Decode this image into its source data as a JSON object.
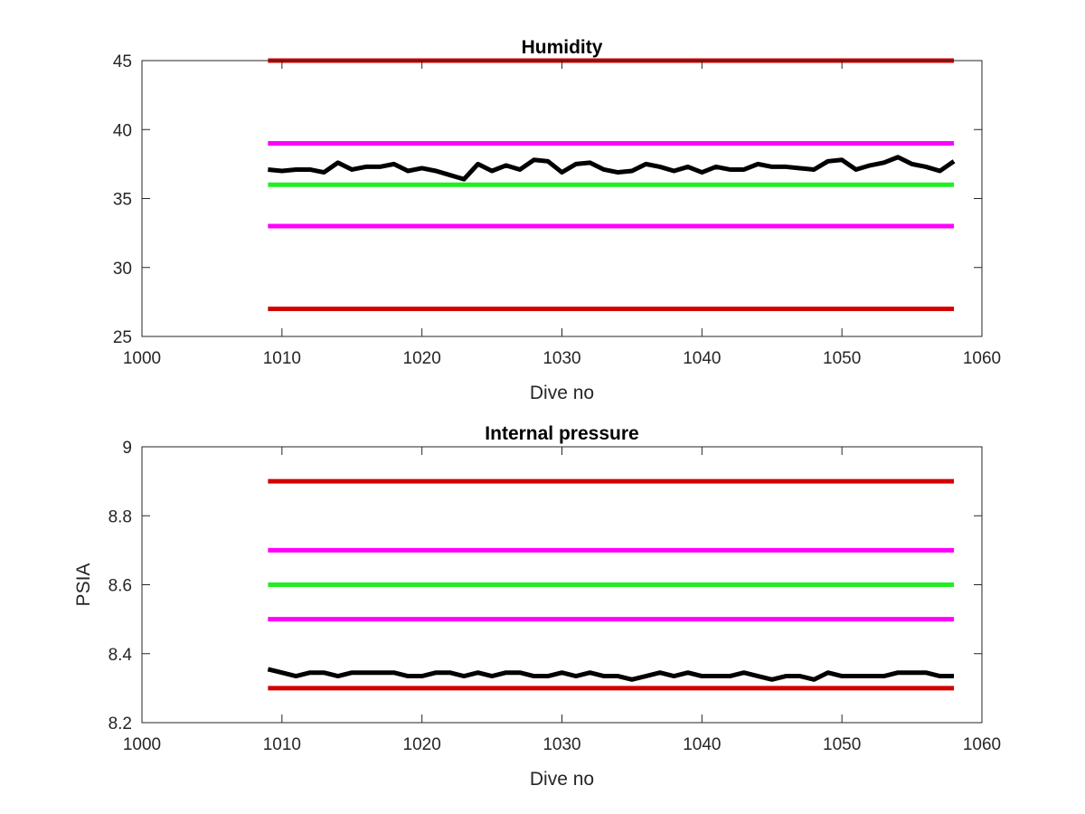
{
  "colors": {
    "limit_red": "#d40000",
    "limit_magenta": "#ff00ff",
    "target_green": "#22ee22",
    "measured_black": "#000000",
    "axis": "#262626"
  },
  "chart_data": [
    {
      "type": "line",
      "title": "Humidity",
      "xlabel": "Dive no",
      "ylabel": "",
      "xlim": [
        1000,
        1060
      ],
      "ylim": [
        25,
        45
      ],
      "xticks": [
        1000,
        1010,
        1020,
        1030,
        1040,
        1050,
        1060
      ],
      "yticks": [
        25,
        30,
        35,
        40,
        45
      ],
      "xtick_labels": [
        "1000",
        "1010",
        "1020",
        "1030",
        "1040",
        "1050",
        "1060"
      ],
      "ytick_labels": [
        "25",
        "30",
        "35",
        "40",
        "45"
      ],
      "grid": false,
      "reference_lines": [
        {
          "y": 45,
          "x_range": [
            1009,
            1058
          ],
          "color": "#d40000"
        },
        {
          "y": 39,
          "x_range": [
            1009,
            1058
          ],
          "color": "#ff00ff"
        },
        {
          "y": 36,
          "x_range": [
            1009,
            1058
          ],
          "color": "#22ee22"
        },
        {
          "y": 33,
          "x_range": [
            1009,
            1058
          ],
          "color": "#ff00ff"
        },
        {
          "y": 27,
          "x_range": [
            1009,
            1058
          ],
          "color": "#d40000"
        }
      ],
      "series": [
        {
          "color": "#000000",
          "x": [
            1009,
            1010,
            1011,
            1012,
            1013,
            1014,
            1015,
            1016,
            1017,
            1018,
            1019,
            1020,
            1021,
            1022,
            1023,
            1024,
            1025,
            1026,
            1027,
            1028,
            1029,
            1030,
            1031,
            1032,
            1033,
            1034,
            1035,
            1036,
            1037,
            1038,
            1039,
            1040,
            1041,
            1042,
            1043,
            1044,
            1045,
            1046,
            1047,
            1048,
            1049,
            1050,
            1051,
            1052,
            1053,
            1054,
            1055,
            1056,
            1057,
            1058
          ],
          "y": [
            37.1,
            37.0,
            37.1,
            37.1,
            36.9,
            37.6,
            37.1,
            37.3,
            37.3,
            37.5,
            37.0,
            37.2,
            37.0,
            36.7,
            36.4,
            37.5,
            37.0,
            37.4,
            37.1,
            37.8,
            37.7,
            36.9,
            37.5,
            37.6,
            37.1,
            36.9,
            37.0,
            37.5,
            37.3,
            37.0,
            37.3,
            36.9,
            37.3,
            37.1,
            37.1,
            37.5,
            37.3,
            37.3,
            37.2,
            37.1,
            37.7,
            37.8,
            37.1,
            37.4,
            37.6,
            38.0,
            37.5,
            37.3,
            37.0,
            37.7
          ]
        }
      ]
    },
    {
      "type": "line",
      "title": "Internal pressure",
      "xlabel": "Dive no",
      "ylabel": "PSIA",
      "xlim": [
        1000,
        1060
      ],
      "ylim": [
        8.2,
        9
      ],
      "xticks": [
        1000,
        1010,
        1020,
        1030,
        1040,
        1050,
        1060
      ],
      "yticks": [
        8.2,
        8.4,
        8.6,
        8.8,
        9
      ],
      "xtick_labels": [
        "1000",
        "1010",
        "1020",
        "1030",
        "1040",
        "1050",
        "1060"
      ],
      "ytick_labels": [
        "8.2",
        "8.4",
        "8.6",
        "8.8",
        "9"
      ],
      "grid": false,
      "reference_lines": [
        {
          "y": 8.9,
          "x_range": [
            1009,
            1058
          ],
          "color": "#d40000"
        },
        {
          "y": 8.7,
          "x_range": [
            1009,
            1058
          ],
          "color": "#ff00ff"
        },
        {
          "y": 8.6,
          "x_range": [
            1009,
            1058
          ],
          "color": "#22ee22"
        },
        {
          "y": 8.5,
          "x_range": [
            1009,
            1058
          ],
          "color": "#ff00ff"
        },
        {
          "y": 8.3,
          "x_range": [
            1009,
            1058
          ],
          "color": "#d40000"
        }
      ],
      "series": [
        {
          "color": "#000000",
          "x": [
            1009,
            1010,
            1011,
            1012,
            1013,
            1014,
            1015,
            1016,
            1017,
            1018,
            1019,
            1020,
            1021,
            1022,
            1023,
            1024,
            1025,
            1026,
            1027,
            1028,
            1029,
            1030,
            1031,
            1032,
            1033,
            1034,
            1035,
            1036,
            1037,
            1038,
            1039,
            1040,
            1041,
            1042,
            1043,
            1044,
            1045,
            1046,
            1047,
            1048,
            1049,
            1050,
            1051,
            1052,
            1053,
            1054,
            1055,
            1056,
            1057,
            1058
          ],
          "y": [
            8.355,
            8.345,
            8.335,
            8.345,
            8.345,
            8.335,
            8.345,
            8.345,
            8.345,
            8.345,
            8.335,
            8.335,
            8.345,
            8.345,
            8.335,
            8.345,
            8.335,
            8.345,
            8.345,
            8.335,
            8.335,
            8.345,
            8.335,
            8.345,
            8.335,
            8.335,
            8.325,
            8.335,
            8.345,
            8.335,
            8.345,
            8.335,
            8.335,
            8.335,
            8.345,
            8.335,
            8.325,
            8.335,
            8.335,
            8.325,
            8.345,
            8.335,
            8.335,
            8.335,
            8.335,
            8.345,
            8.345,
            8.345,
            8.335,
            8.335
          ]
        }
      ]
    }
  ]
}
